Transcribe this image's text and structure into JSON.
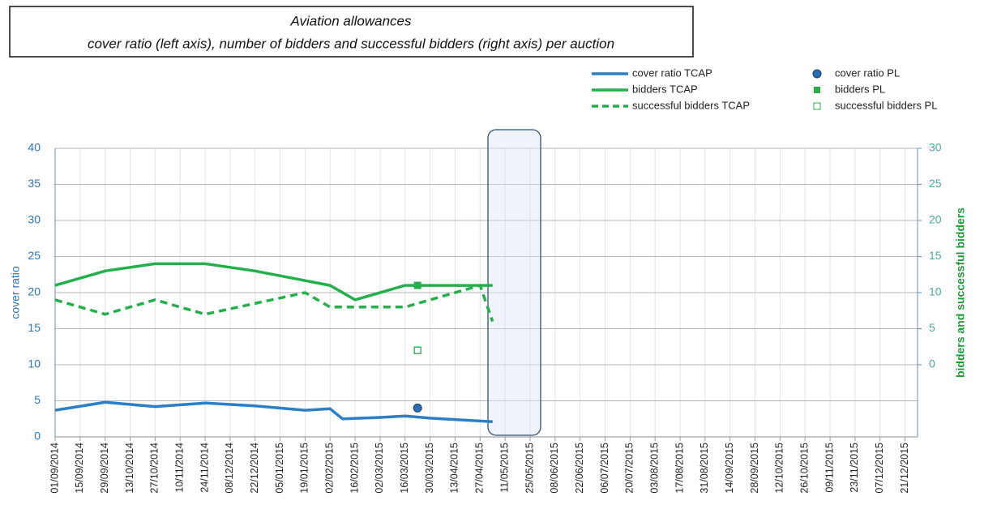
{
  "chart_data": {
    "type": "line",
    "title": "Aviation allowances",
    "subtitle": "cover ratio (left axis), number of bidders and successful bidders (right axis) per auction",
    "ylabel": "cover ratio",
    "y2label": "bidders and successful bidders",
    "xlim": [
      "01/09/2014",
      "28/12/2015"
    ],
    "xticks": [
      "01/09/2014",
      "15/09/2014",
      "29/09/2014",
      "13/10/2014",
      "27/10/2014",
      "10/11/2014",
      "24/11/2014",
      "08/12/2014",
      "22/12/2014",
      "05/01/2015",
      "19/01/2015",
      "02/02/2015",
      "16/02/2015",
      "02/03/2015",
      "16/03/2015",
      "30/03/2015",
      "13/04/2015",
      "27/04/2015",
      "11/05/2015",
      "25/05/2015",
      "08/06/2015",
      "22/06/2015",
      "06/07/2015",
      "20/07/2015",
      "03/08/2015",
      "17/08/2015",
      "31/08/2015",
      "14/09/2015",
      "28/09/2015",
      "12/10/2015",
      "26/10/2015",
      "09/11/2015",
      "23/11/2015",
      "07/12/2015",
      "21/12/2015"
    ],
    "ylim": [
      0,
      40
    ],
    "yticks": [
      0,
      5,
      10,
      15,
      20,
      25,
      30,
      35,
      40
    ],
    "y2lim": [
      -10,
      30
    ],
    "y2ticks": [
      0,
      5,
      10,
      15,
      20,
      25,
      30
    ],
    "grid": true,
    "series": [
      {
        "name": "cover ratio TCAP",
        "color": "#2a7fc5",
        "style": "solid",
        "axis": "y",
        "x": [
          "01/09/2014",
          "29/09/2014",
          "27/10/2014",
          "24/11/2014",
          "22/12/2014",
          "19/01/2015",
          "02/02/2015",
          "09/02/2015",
          "02/03/2015",
          "16/03/2015",
          "30/03/2015",
          "13/04/2015",
          "04/05/2015"
        ],
        "values": [
          3.7,
          4.8,
          4.2,
          4.7,
          4.3,
          3.7,
          3.9,
          2.5,
          2.7,
          2.9,
          2.6,
          2.4,
          2.1
        ]
      },
      {
        "name": "bidders TCAP",
        "color": "#22b04b",
        "style": "solid",
        "axis": "y2",
        "x": [
          "01/09/2014",
          "29/09/2014",
          "27/10/2014",
          "24/11/2014",
          "22/12/2014",
          "12/01/2015",
          "02/02/2015",
          "16/02/2015",
          "16/03/2015",
          "04/05/2015"
        ],
        "values": [
          11,
          13,
          14,
          14,
          13,
          12,
          11,
          9,
          11,
          11
        ]
      },
      {
        "name": "successful bidders TCAP",
        "color": "#22b04b",
        "style": "dashed",
        "axis": "y2",
        "x": [
          "01/09/2014",
          "29/09/2014",
          "27/10/2014",
          "24/11/2014",
          "19/01/2015",
          "02/02/2015",
          "16/03/2015",
          "27/04/2015",
          "04/05/2015"
        ],
        "values": [
          9,
          7,
          9,
          7,
          10,
          8,
          8,
          11,
          6
        ]
      },
      {
        "name": "cover ratio PL",
        "color": "#2a6fb5",
        "style": "circle",
        "axis": "y",
        "x": [
          "23/03/2015"
        ],
        "values": [
          4.0
        ]
      },
      {
        "name": "bidders PL",
        "color": "#22b04b",
        "style": "square",
        "axis": "y2",
        "x": [
          "23/03/2015"
        ],
        "values": [
          11
        ]
      },
      {
        "name": "successful bidders PL",
        "color": "#22b04b",
        "style": "open-square",
        "axis": "y2",
        "x": [
          "23/03/2015"
        ],
        "values": [
          2
        ]
      }
    ]
  }
}
